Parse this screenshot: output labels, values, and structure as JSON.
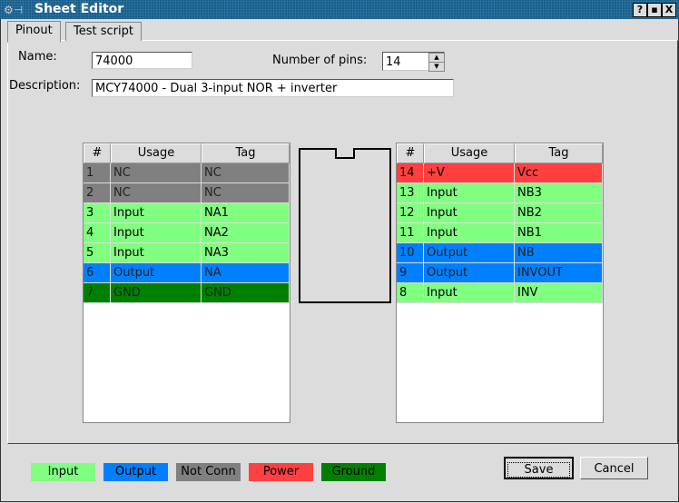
{
  "window": {
    "title": "Sheet Editor",
    "buttons": [
      "?",
      "▪",
      "X"
    ]
  },
  "tabs": [
    {
      "label": "Pinout",
      "active": true
    },
    {
      "label": "Test script",
      "active": false
    }
  ],
  "form": {
    "name_label": "Name:",
    "name_value": "74000",
    "pins_label": "Number of pins:",
    "pins_value": "14",
    "description_label": "Description:",
    "description_value": "MCY74000 - Dual 3-input NOR + inverter"
  },
  "columns": [
    "#",
    "Usage",
    "Tag"
  ],
  "colors": {
    "Input": "#80ff80",
    "Output": "#0080ff",
    "NC": "#808080",
    "+V": "#ff4040",
    "GND": "#008000"
  },
  "left_pins": [
    [
      "1",
      "NC",
      "NC"
    ],
    [
      "2",
      "NC",
      "NC"
    ],
    [
      "3",
      "Input",
      "NA1"
    ],
    [
      "4",
      "Input",
      "NA2"
    ],
    [
      "5",
      "Input",
      "NA3"
    ],
    [
      "6",
      "Output",
      "NA"
    ],
    [
      "7",
      "GND",
      "GND"
    ]
  ],
  "right_pins": [
    [
      "14",
      "+V",
      "Vcc"
    ],
    [
      "13",
      "Input",
      "NB3"
    ],
    [
      "12",
      "Input",
      "NB2"
    ],
    [
      "11",
      "Input",
      "NB1"
    ],
    [
      "10",
      "Output",
      "NB"
    ],
    [
      "9",
      "Output",
      "INVOUT"
    ],
    [
      "8",
      "Input",
      "INV"
    ]
  ],
  "legend": [
    {
      "label": "Input",
      "color": "#80ff80"
    },
    {
      "label": "Output",
      "color": "#0080ff"
    },
    {
      "label": "Not Conn",
      "color": "#808080"
    },
    {
      "label": "Power",
      "color": "#ff4040"
    },
    {
      "label": "Ground",
      "color": "#008000"
    }
  ],
  "buttons": {
    "save": "Save",
    "cancel": "Cancel"
  }
}
